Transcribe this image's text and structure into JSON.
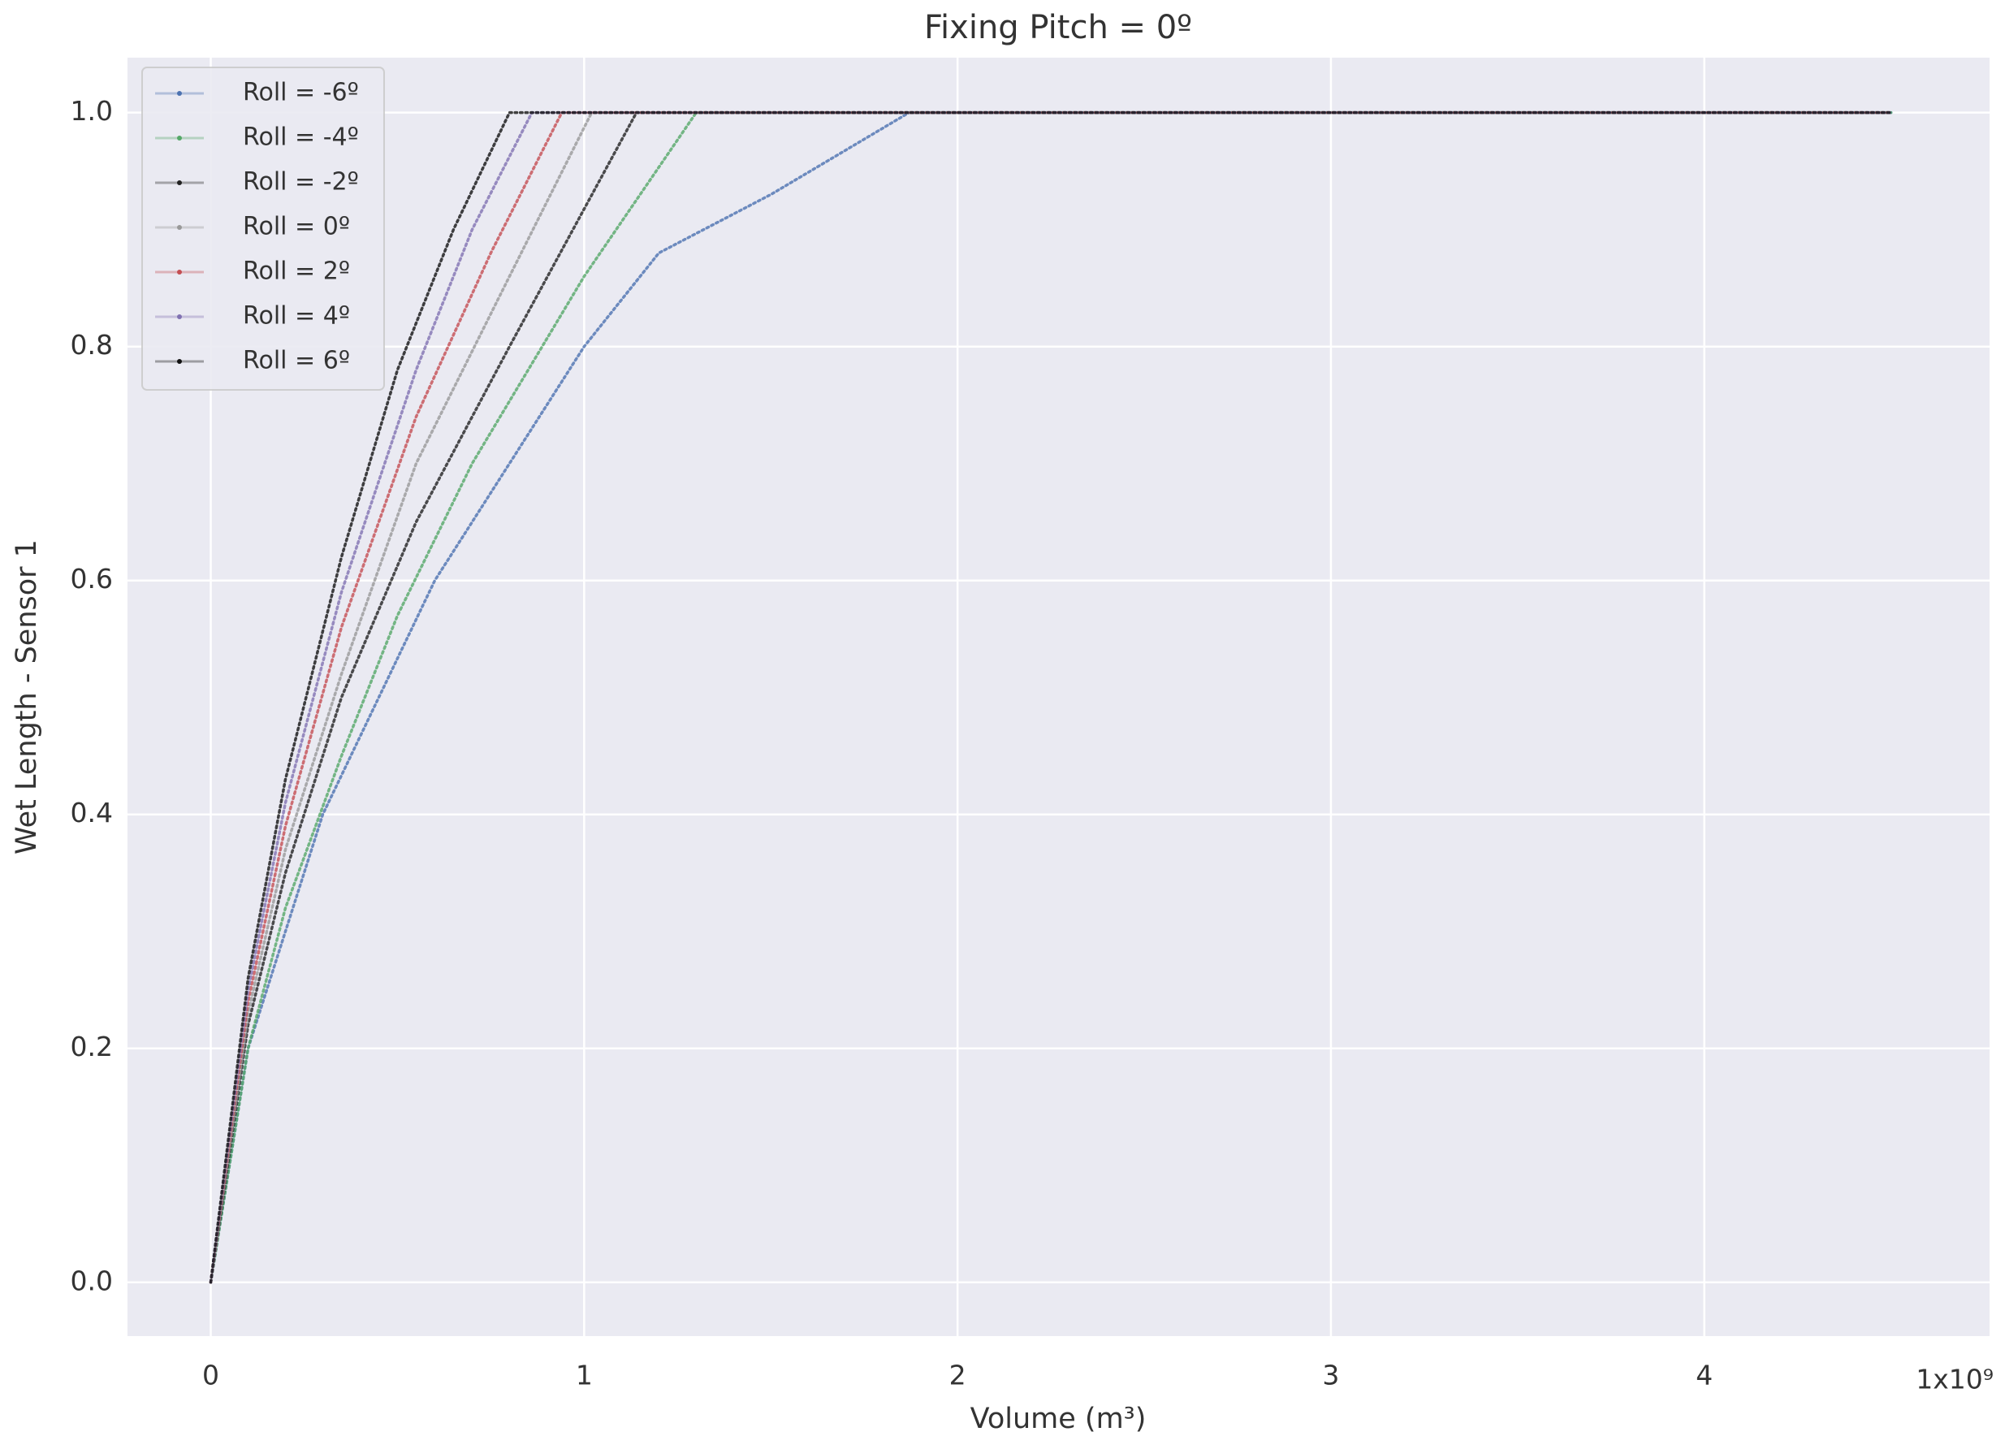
{
  "chart_data": {
    "type": "line",
    "title": "Fixing Pitch = 0º",
    "xlabel": "Volume (m³)",
    "ylabel": "Wet Length - Sensor 1",
    "x_offset_label": "1x10⁹",
    "xlim": [
      -0.223,
      4.764
    ],
    "ylim": [
      -0.046,
      1.047
    ],
    "xticks": [
      0,
      1,
      2,
      3,
      4
    ],
    "yticks": [
      {
        "value": 0,
        "label": "0.0"
      },
      {
        "value": 0.2,
        "label": "0.2"
      },
      {
        "value": 0.4,
        "label": "0.4"
      },
      {
        "value": 0.6,
        "label": "0.6"
      },
      {
        "value": 0.8,
        "label": "0.8"
      },
      {
        "value": 1,
        "label": "1.0"
      }
    ],
    "grid": true,
    "legend": "upper left",
    "series": [
      {
        "name": "Roll = -6º",
        "color": "#4c72b0",
        "x": [
          0,
          0.05,
          0.1,
          0.2,
          0.3,
          0.45,
          0.6,
          0.8,
          1.0,
          1.2,
          1.5,
          1.87,
          4.5
        ],
        "values": [
          0,
          0.1,
          0.2,
          0.3,
          0.4,
          0.5,
          0.6,
          0.7,
          0.8,
          0.88,
          0.93,
          1.0,
          1.0
        ]
      },
      {
        "name": "Roll = -4º",
        "color": "#55a868",
        "x": [
          0,
          0.1,
          0.2,
          0.35,
          0.5,
          0.7,
          1.0,
          1.3,
          4.5
        ],
        "values": [
          0,
          0.2,
          0.32,
          0.45,
          0.57,
          0.7,
          0.86,
          1.0,
          1.0
        ]
      },
      {
        "name": "Roll = -2º",
        "color": "#222222",
        "x": [
          0,
          0.1,
          0.2,
          0.35,
          0.55,
          0.8,
          1.14,
          4.5
        ],
        "values": [
          0,
          0.22,
          0.35,
          0.5,
          0.65,
          0.8,
          1.0,
          1.0
        ]
      },
      {
        "name": "Roll = 0º",
        "color": "#999999",
        "x": [
          0,
          0.1,
          0.2,
          0.35,
          0.55,
          0.8,
          1.02,
          4.5
        ],
        "values": [
          0,
          0.23,
          0.37,
          0.52,
          0.7,
          0.86,
          1.0,
          1.0
        ]
      },
      {
        "name": "Roll = 2º",
        "color": "#c44e52",
        "x": [
          0,
          0.1,
          0.2,
          0.35,
          0.55,
          0.75,
          0.94,
          4.5
        ],
        "values": [
          0,
          0.24,
          0.39,
          0.56,
          0.74,
          0.88,
          1.0,
          1.0
        ]
      },
      {
        "name": "Roll = 4º",
        "color": "#8172b2",
        "x": [
          0,
          0.1,
          0.2,
          0.35,
          0.55,
          0.7,
          0.86,
          4.5
        ],
        "values": [
          0,
          0.25,
          0.41,
          0.59,
          0.78,
          0.9,
          1.0,
          1.0
        ]
      },
      {
        "name": "Roll = 6º",
        "color": "#111111",
        "x": [
          0,
          0.1,
          0.2,
          0.35,
          0.5,
          0.65,
          0.8,
          4.5
        ],
        "values": [
          0,
          0.26,
          0.43,
          0.62,
          0.78,
          0.9,
          1.0,
          1.0
        ]
      }
    ]
  }
}
